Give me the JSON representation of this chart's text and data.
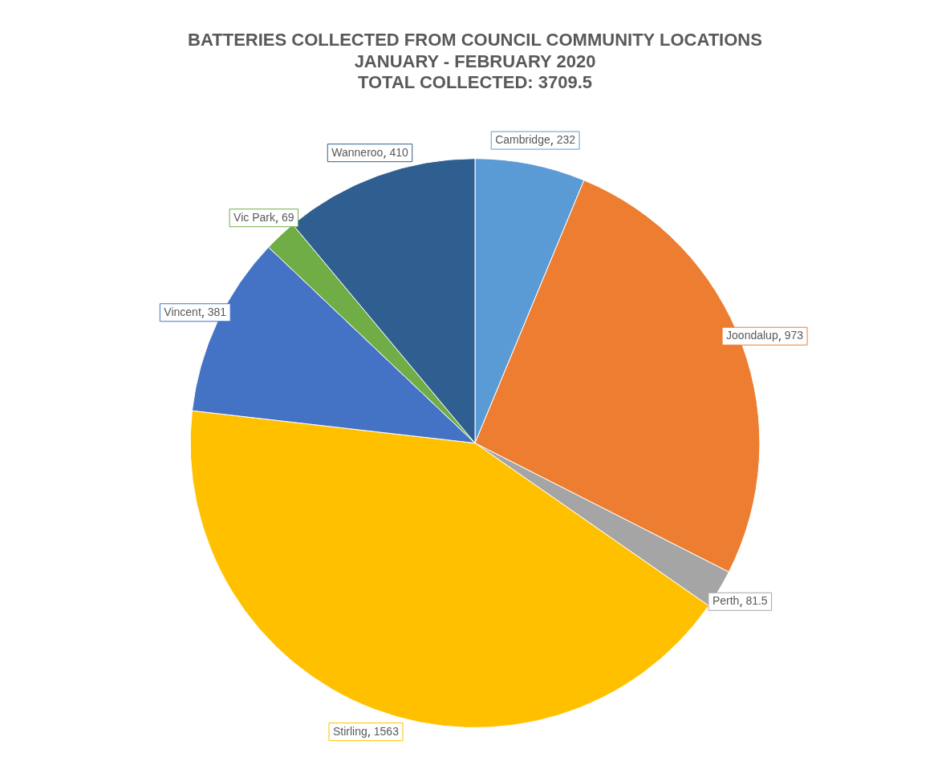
{
  "chart_data": {
    "type": "pie",
    "title": "BATTERIES COLLECTED FROM COUNCIL COMMUNITY LOCATIONS\nJANUARY - FEBRUARY 2020\nTOTAL COLLECTED: 3709.5",
    "categories": [
      "Cambridge",
      "Joondalup",
      "Perth",
      "Stirling",
      "Vincent",
      "Vic Park",
      "Wanneroo"
    ],
    "values": [
      232,
      973,
      81.5,
      1563,
      381,
      69,
      410
    ],
    "colors": [
      "#5b9bd5",
      "#ed7d31",
      "#a5a5a5",
      "#ffc000",
      "#4472c4",
      "#70ad47",
      "#2f5f91"
    ],
    "data_labels": true,
    "legend": false
  }
}
